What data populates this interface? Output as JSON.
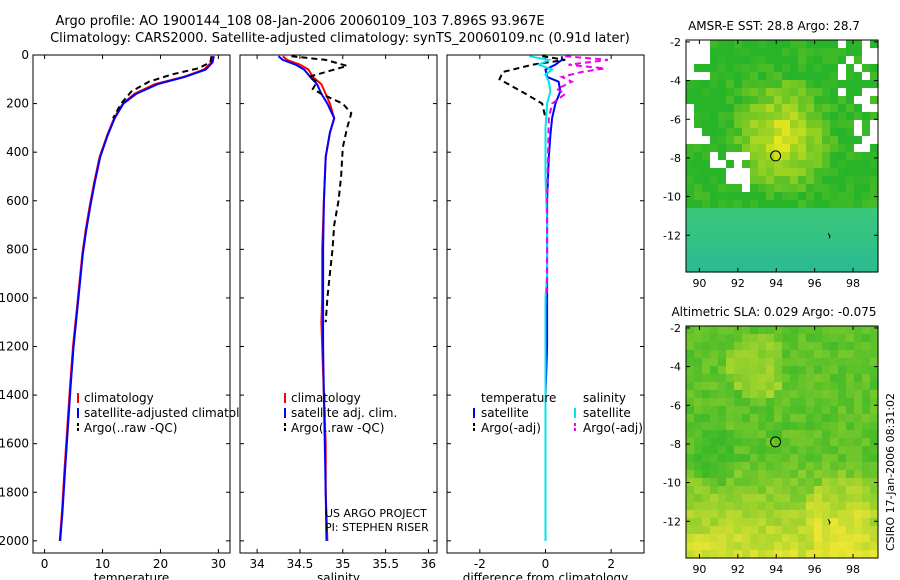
{
  "header": {
    "line1": "Argo profile: AO 1900144_108 08-Jan-2006 20060109_103 7.896S 93.967E",
    "line2": "Climatology: CARS2000. Satellite-adjusted climatology: synTS_20060109.nc (0.91d later)"
  },
  "side_text": "CSIRO 17-Jan-2006 08:31:02",
  "colors": {
    "climatology": "#ff0000",
    "satellite": "#0000ff",
    "argo": "#000000",
    "salinity_satellite": "#00e5ee",
    "salinity_argo": "#ee00ee"
  },
  "chart_data": [
    {
      "type": "line",
      "id": "temperature",
      "xlabel": "temperature",
      "xlim": [
        -2,
        32
      ],
      "ylim": [
        2050,
        0
      ],
      "xticks": [
        0,
        10,
        20,
        30
      ],
      "yticks": [
        0,
        200,
        400,
        600,
        800,
        1000,
        1200,
        1400,
        1600,
        1800,
        2000
      ],
      "legend": [
        "climatology",
        "satellite-adjusted climatology",
        "Argo(..raw -QC)"
      ],
      "series": [
        {
          "name": "climatology",
          "style": "solid",
          "points": [
            [
              29.0,
              5
            ],
            [
              28.8,
              30
            ],
            [
              27.5,
              60
            ],
            [
              24,
              90
            ],
            [
              19,
              120
            ],
            [
              15.5,
              160
            ],
            [
              13.5,
              200
            ],
            [
              12,
              260
            ],
            [
              10.8,
              330
            ],
            [
              9.5,
              420
            ],
            [
              8.6,
              520
            ],
            [
              7.8,
              620
            ],
            [
              7.1,
              720
            ],
            [
              6.5,
              820
            ],
            [
              6.0,
              940
            ],
            [
              5.5,
              1060
            ],
            [
              4.9,
              1200
            ],
            [
              4.4,
              1360
            ],
            [
              3.9,
              1540
            ],
            [
              3.4,
              1720
            ],
            [
              3.0,
              1880
            ],
            [
              2.6,
              2000
            ]
          ]
        },
        {
          "name": "satellite-adjusted climatology",
          "style": "solid",
          "points": [
            [
              29.2,
              5
            ],
            [
              29.0,
              30
            ],
            [
              27.8,
              60
            ],
            [
              24.2,
              90
            ],
            [
              19.5,
              120
            ],
            [
              15.8,
              160
            ],
            [
              13.6,
              200
            ],
            [
              12.1,
              260
            ],
            [
              10.9,
              330
            ],
            [
              9.6,
              420
            ],
            [
              8.7,
              520
            ],
            [
              7.9,
              620
            ],
            [
              7.2,
              720
            ],
            [
              6.6,
              820
            ],
            [
              6.1,
              940
            ],
            [
              5.6,
              1060
            ],
            [
              5.0,
              1200
            ],
            [
              4.5,
              1360
            ],
            [
              4.0,
              1540
            ],
            [
              3.5,
              1720
            ],
            [
              3.1,
              1880
            ],
            [
              2.7,
              2000
            ]
          ]
        },
        {
          "name": "Argo(..raw -QC)",
          "style": "dash",
          "points": [
            [
              28.8,
              5
            ],
            [
              28.6,
              30
            ],
            [
              26.5,
              55
            ],
            [
              22,
              80
            ],
            [
              18,
              110
            ],
            [
              15,
              150
            ],
            [
              13.2,
              200
            ],
            [
              11.8,
              260
            ]
          ]
        }
      ]
    },
    {
      "type": "line",
      "id": "salinity",
      "xlabel": "salinity",
      "xlim": [
        33.8,
        36.1
      ],
      "ylim": [
        2050,
        0
      ],
      "xticks": [
        34,
        34.5,
        35,
        35.5,
        36
      ],
      "yticks": [
        0,
        200,
        400,
        600,
        800,
        1000,
        1200,
        1400,
        1600,
        1800,
        2000
      ],
      "legend": [
        "climatology",
        "satellite adj. clim.",
        "Argo(..raw -QC)"
      ],
      "annotation": [
        "US ARGO PROJECT",
        "PI: STEPHEN RISER"
      ],
      "series": [
        {
          "name": "climatology",
          "style": "solid",
          "points": [
            [
              34.3,
              5
            ],
            [
              34.35,
              20
            ],
            [
              34.5,
              40
            ],
            [
              34.6,
              60
            ],
            [
              34.65,
              90
            ],
            [
              34.75,
              120
            ],
            [
              34.8,
              160
            ],
            [
              34.85,
              200
            ],
            [
              34.9,
              260
            ],
            [
              34.85,
              320
            ],
            [
              34.8,
              420
            ],
            [
              34.78,
              600
            ],
            [
              34.76,
              800
            ],
            [
              34.76,
              1000
            ],
            [
              34.75,
              1100
            ],
            [
              34.76,
              1200
            ],
            [
              34.78,
              1400
            ],
            [
              34.8,
              1600
            ],
            [
              34.8,
              1800
            ],
            [
              34.82,
              2000
            ]
          ]
        },
        {
          "name": "satellite adj. clim.",
          "style": "solid",
          "points": [
            [
              34.25,
              5
            ],
            [
              34.3,
              20
            ],
            [
              34.45,
              40
            ],
            [
              34.55,
              60
            ],
            [
              34.62,
              90
            ],
            [
              34.7,
              120
            ],
            [
              34.75,
              160
            ],
            [
              34.82,
              200
            ],
            [
              34.9,
              260
            ],
            [
              34.85,
              320
            ],
            [
              34.8,
              420
            ],
            [
              34.78,
              600
            ],
            [
              34.77,
              800
            ],
            [
              34.77,
              1000
            ],
            [
              34.77,
              1200
            ],
            [
              34.78,
              1400
            ],
            [
              34.79,
              1600
            ],
            [
              34.8,
              1800
            ],
            [
              34.81,
              2000
            ]
          ]
        },
        {
          "name": "Argo(..raw -QC)",
          "style": "dash",
          "points": [
            [
              34.4,
              5
            ],
            [
              34.8,
              20
            ],
            [
              35.05,
              45
            ],
            [
              34.8,
              70
            ],
            [
              34.6,
              90
            ],
            [
              34.7,
              110
            ],
            [
              34.65,
              140
            ],
            [
              34.75,
              160
            ],
            [
              35.0,
              200
            ],
            [
              35.1,
              240
            ],
            [
              35.05,
              300
            ],
            [
              35.0,
              380
            ],
            [
              34.98,
              500
            ],
            [
              34.95,
              600
            ],
            [
              34.9,
              700
            ],
            [
              34.88,
              800
            ],
            [
              34.85,
              900
            ],
            [
              34.82,
              1000
            ],
            [
              34.8,
              1100
            ]
          ]
        }
      ]
    },
    {
      "type": "line",
      "id": "difference",
      "xlabel": "difference from climatology",
      "xlim": [
        -3,
        3
      ],
      "ylim": [
        2050,
        0
      ],
      "xticks": [
        -2,
        0,
        2
      ],
      "yticks": [
        0,
        200,
        400,
        600,
        800,
        1000,
        1200,
        1400,
        1600,
        1800,
        2000
      ],
      "legend_left": {
        "title": "temperature",
        "items": [
          "satellite",
          "Argo(-adj)"
        ]
      },
      "legend_right": {
        "title": "salinity",
        "items": [
          "satellite",
          "Argo(-adj)"
        ]
      },
      "series": [
        {
          "name": "temperature satellite",
          "style": "solid",
          "points": [
            [
              0.5,
              5
            ],
            [
              0.5,
              20
            ],
            [
              0.3,
              40
            ],
            [
              0.0,
              60
            ],
            [
              0.05,
              90
            ],
            [
              0.4,
              110
            ],
            [
              0.45,
              150
            ],
            [
              0.3,
              200
            ],
            [
              0.2,
              260
            ],
            [
              0.15,
              330
            ],
            [
              0.1,
              420
            ],
            [
              0.05,
              600
            ],
            [
              0.05,
              800
            ],
            [
              0.05,
              1000
            ],
            [
              0.05,
              1200
            ],
            [
              0.0,
              1400
            ],
            [
              0.0,
              1600
            ],
            [
              0.0,
              1800
            ],
            [
              0.0,
              2000
            ]
          ]
        },
        {
          "name": "temperature Argo(-adj)",
          "style": "dash",
          "points": [
            [
              -0.1,
              5
            ],
            [
              0.6,
              20
            ],
            [
              -0.4,
              40
            ],
            [
              -1.3,
              70
            ],
            [
              -1.4,
              100
            ],
            [
              -1.0,
              130
            ],
            [
              -0.6,
              160
            ],
            [
              -0.1,
              200
            ],
            [
              0.0,
              260
            ]
          ]
        },
        {
          "name": "salinity satellite",
          "style": "solid",
          "points": [
            [
              -0.5,
              5
            ],
            [
              0.1,
              20
            ],
            [
              -0.2,
              40
            ],
            [
              0.2,
              60
            ],
            [
              0.0,
              80
            ],
            [
              0.1,
              110
            ],
            [
              0.15,
              150
            ],
            [
              0.05,
              200
            ],
            [
              0.0,
              300
            ],
            [
              0.0,
              500
            ],
            [
              0.05,
              700
            ],
            [
              0.05,
              900
            ],
            [
              0.0,
              1000
            ],
            [
              0.0,
              1200
            ],
            [
              0.0,
              1400
            ],
            [
              0.0,
              1600
            ],
            [
              0.0,
              1800
            ],
            [
              0.0,
              2000
            ]
          ]
        },
        {
          "name": "salinity Argo(-adj)",
          "style": "dash",
          "points": [
            [
              0.6,
              5
            ],
            [
              1.9,
              20
            ],
            [
              0.7,
              40
            ],
            [
              1.8,
              55
            ],
            [
              1.1,
              70
            ],
            [
              0.5,
              90
            ],
            [
              0.8,
              110
            ],
            [
              0.35,
              140
            ],
            [
              0.6,
              160
            ],
            [
              0.2,
              200
            ],
            [
              0.1,
              260
            ],
            [
              0.08,
              400
            ],
            [
              0.05,
              600
            ],
            [
              0.05,
              800
            ],
            [
              0.04,
              1000
            ]
          ]
        }
      ]
    },
    {
      "type": "heatmap",
      "id": "sst_map",
      "title": "AMSR-E SST: 28.8 Argo: 28.7",
      "xlim": [
        89.3,
        99.3
      ],
      "ylim": [
        -13.9,
        -1.9
      ],
      "xticks": [
        90,
        92,
        94,
        96,
        98
      ],
      "yticks": [
        -2,
        -4,
        -6,
        -8,
        -10,
        -12
      ],
      "marker": {
        "lon": 93.967,
        "lat": -7.896
      }
    },
    {
      "type": "heatmap",
      "id": "sla_map",
      "title": "Altimetric SLA: 0.029 Argo: -0.075",
      "xlim": [
        89.3,
        99.3
      ],
      "ylim": [
        -13.9,
        -1.9
      ],
      "xticks": [
        90,
        92,
        94,
        96,
        98
      ],
      "yticks": [
        -2,
        -4,
        -6,
        -8,
        -10,
        -12
      ],
      "marker": {
        "lon": 93.967,
        "lat": -7.896
      }
    }
  ]
}
